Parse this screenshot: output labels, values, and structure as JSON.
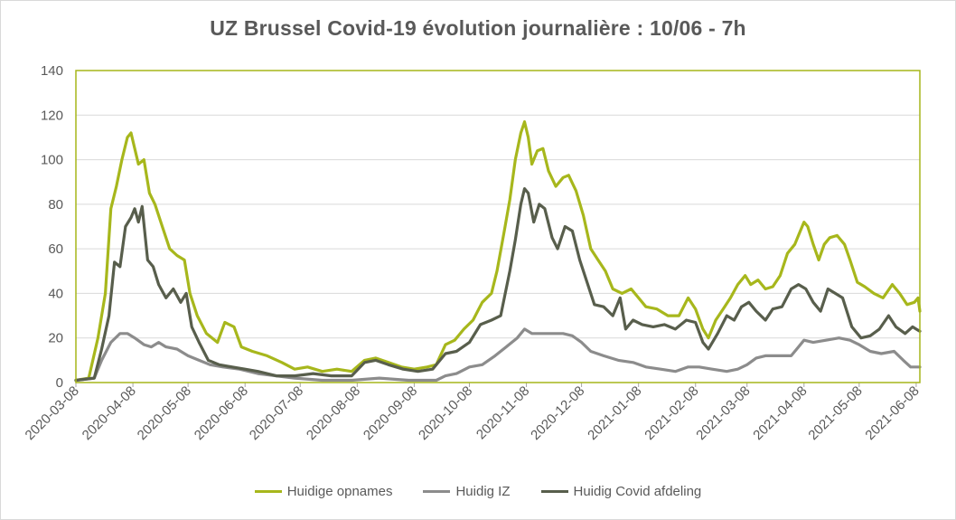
{
  "chart_data": {
    "type": "line",
    "title": "UZ Brussel Covid-19 évolution journalière : 10/06 - 7h",
    "xlabel": "",
    "ylabel": "",
    "ylim": [
      0,
      140
    ],
    "yticks": [
      0,
      20,
      40,
      60,
      80,
      100,
      120,
      140
    ],
    "xlim": [
      "2020-03-08",
      "2021-06-10"
    ],
    "xticks": [
      "2020-03-08",
      "2020-04-08",
      "2020-05-08",
      "2020-06-08",
      "2020-07-08",
      "2020-08-08",
      "2020-09-08",
      "2020-10-08",
      "2020-11-08",
      "2020-12-08",
      "2021-01-08",
      "2021-02-08",
      "2021-03-08",
      "2021-04-08",
      "2021-05-08",
      "2021-06-08"
    ],
    "grid": true,
    "legend_position": "bottom",
    "plot_border_color": "#a6b51a",
    "series": [
      {
        "name": "Huidige opnames",
        "color": "#a7b71c",
        "points": [
          [
            "2020-03-08",
            1
          ],
          [
            "2020-03-15",
            2
          ],
          [
            "2020-03-20",
            20
          ],
          [
            "2020-03-24",
            40
          ],
          [
            "2020-03-27",
            78
          ],
          [
            "2020-03-30",
            88
          ],
          [
            "2020-04-02",
            100
          ],
          [
            "2020-04-05",
            110
          ],
          [
            "2020-04-07",
            112
          ],
          [
            "2020-04-09",
            105
          ],
          [
            "2020-04-11",
            98
          ],
          [
            "2020-04-14",
            100
          ],
          [
            "2020-04-17",
            85
          ],
          [
            "2020-04-20",
            80
          ],
          [
            "2020-04-24",
            70
          ],
          [
            "2020-04-28",
            60
          ],
          [
            "2020-05-02",
            57
          ],
          [
            "2020-05-06",
            55
          ],
          [
            "2020-05-09",
            40
          ],
          [
            "2020-05-13",
            30
          ],
          [
            "2020-05-18",
            22
          ],
          [
            "2020-05-24",
            18
          ],
          [
            "2020-05-28",
            27
          ],
          [
            "2020-06-02",
            25
          ],
          [
            "2020-06-06",
            16
          ],
          [
            "2020-06-12",
            14
          ],
          [
            "2020-06-20",
            12
          ],
          [
            "2020-06-28",
            9
          ],
          [
            "2020-07-05",
            6
          ],
          [
            "2020-07-12",
            7
          ],
          [
            "2020-07-20",
            5
          ],
          [
            "2020-07-28",
            6
          ],
          [
            "2020-08-05",
            5
          ],
          [
            "2020-08-12",
            10
          ],
          [
            "2020-08-18",
            11
          ],
          [
            "2020-08-25",
            9
          ],
          [
            "2020-09-01",
            7
          ],
          [
            "2020-09-08",
            6
          ],
          [
            "2020-09-15",
            7
          ],
          [
            "2020-09-20",
            8
          ],
          [
            "2020-09-25",
            17
          ],
          [
            "2020-09-30",
            19
          ],
          [
            "2020-10-05",
            24
          ],
          [
            "2020-10-10",
            28
          ],
          [
            "2020-10-15",
            36
          ],
          [
            "2020-10-20",
            40
          ],
          [
            "2020-10-23",
            50
          ],
          [
            "2020-10-27",
            68
          ],
          [
            "2020-10-30",
            82
          ],
          [
            "2020-11-02",
            100
          ],
          [
            "2020-11-05",
            112
          ],
          [
            "2020-11-07",
            117
          ],
          [
            "2020-11-09",
            110
          ],
          [
            "2020-11-11",
            98
          ],
          [
            "2020-11-14",
            104
          ],
          [
            "2020-11-17",
            105
          ],
          [
            "2020-11-20",
            95
          ],
          [
            "2020-11-24",
            88
          ],
          [
            "2020-11-28",
            92
          ],
          [
            "2020-12-01",
            93
          ],
          [
            "2020-12-05",
            86
          ],
          [
            "2020-12-09",
            75
          ],
          [
            "2020-12-13",
            60
          ],
          [
            "2020-12-17",
            55
          ],
          [
            "2020-12-21",
            50
          ],
          [
            "2020-12-25",
            42
          ],
          [
            "2020-12-30",
            40
          ],
          [
            "2021-01-04",
            42
          ],
          [
            "2021-01-08",
            38
          ],
          [
            "2021-01-12",
            34
          ],
          [
            "2021-01-18",
            33
          ],
          [
            "2021-01-24",
            30
          ],
          [
            "2021-01-30",
            30
          ],
          [
            "2021-02-04",
            38
          ],
          [
            "2021-02-08",
            33
          ],
          [
            "2021-02-12",
            24
          ],
          [
            "2021-02-15",
            20
          ],
          [
            "2021-02-19",
            28
          ],
          [
            "2021-02-23",
            33
          ],
          [
            "2021-02-27",
            38
          ],
          [
            "2021-03-03",
            44
          ],
          [
            "2021-03-07",
            48
          ],
          [
            "2021-03-10",
            44
          ],
          [
            "2021-03-14",
            46
          ],
          [
            "2021-03-18",
            42
          ],
          [
            "2021-03-22",
            43
          ],
          [
            "2021-03-26",
            48
          ],
          [
            "2021-03-30",
            58
          ],
          [
            "2021-04-03",
            62
          ],
          [
            "2021-04-06",
            68
          ],
          [
            "2021-04-08",
            72
          ],
          [
            "2021-04-10",
            70
          ],
          [
            "2021-04-13",
            62
          ],
          [
            "2021-04-16",
            55
          ],
          [
            "2021-04-19",
            62
          ],
          [
            "2021-04-22",
            65
          ],
          [
            "2021-04-26",
            66
          ],
          [
            "2021-04-30",
            62
          ],
          [
            "2021-05-03",
            55
          ],
          [
            "2021-05-07",
            45
          ],
          [
            "2021-05-11",
            43
          ],
          [
            "2021-05-16",
            40
          ],
          [
            "2021-05-21",
            38
          ],
          [
            "2021-05-26",
            44
          ],
          [
            "2021-05-30",
            40
          ],
          [
            "2021-06-03",
            35
          ],
          [
            "2021-06-07",
            36
          ],
          [
            "2021-06-09",
            38
          ],
          [
            "2021-06-10",
            32
          ]
        ]
      },
      {
        "name": "Huidig IZ",
        "color": "#8c8c8c",
        "points": [
          [
            "2020-03-08",
            1
          ],
          [
            "2020-03-18",
            2
          ],
          [
            "2020-03-22",
            10
          ],
          [
            "2020-03-27",
            18
          ],
          [
            "2020-04-01",
            22
          ],
          [
            "2020-04-05",
            22
          ],
          [
            "2020-04-09",
            20
          ],
          [
            "2020-04-14",
            17
          ],
          [
            "2020-04-18",
            16
          ],
          [
            "2020-04-22",
            18
          ],
          [
            "2020-04-26",
            16
          ],
          [
            "2020-05-02",
            15
          ],
          [
            "2020-05-08",
            12
          ],
          [
            "2020-05-14",
            10
          ],
          [
            "2020-05-20",
            8
          ],
          [
            "2020-05-27",
            7
          ],
          [
            "2020-06-05",
            6
          ],
          [
            "2020-06-15",
            4
          ],
          [
            "2020-06-25",
            3
          ],
          [
            "2020-07-05",
            2
          ],
          [
            "2020-07-20",
            1
          ],
          [
            "2020-08-05",
            1
          ],
          [
            "2020-08-20",
            2
          ],
          [
            "2020-09-05",
            1
          ],
          [
            "2020-09-20",
            1
          ],
          [
            "2020-09-25",
            3
          ],
          [
            "2020-10-01",
            4
          ],
          [
            "2020-10-08",
            7
          ],
          [
            "2020-10-15",
            8
          ],
          [
            "2020-10-22",
            12
          ],
          [
            "2020-10-28",
            16
          ],
          [
            "2020-11-03",
            20
          ],
          [
            "2020-11-07",
            24
          ],
          [
            "2020-11-11",
            22
          ],
          [
            "2020-11-16",
            22
          ],
          [
            "2020-11-22",
            22
          ],
          [
            "2020-11-28",
            22
          ],
          [
            "2020-12-03",
            21
          ],
          [
            "2020-12-08",
            18
          ],
          [
            "2020-12-13",
            14
          ],
          [
            "2020-12-20",
            12
          ],
          [
            "2020-12-28",
            10
          ],
          [
            "2021-01-05",
            9
          ],
          [
            "2021-01-12",
            7
          ],
          [
            "2021-01-20",
            6
          ],
          [
            "2021-01-28",
            5
          ],
          [
            "2021-02-04",
            7
          ],
          [
            "2021-02-10",
            7
          ],
          [
            "2021-02-17",
            6
          ],
          [
            "2021-02-25",
            5
          ],
          [
            "2021-03-03",
            6
          ],
          [
            "2021-03-08",
            8
          ],
          [
            "2021-03-13",
            11
          ],
          [
            "2021-03-18",
            12
          ],
          [
            "2021-03-25",
            12
          ],
          [
            "2021-04-01",
            12
          ],
          [
            "2021-04-05",
            16
          ],
          [
            "2021-04-08",
            19
          ],
          [
            "2021-04-13",
            18
          ],
          [
            "2021-04-20",
            19
          ],
          [
            "2021-04-27",
            20
          ],
          [
            "2021-05-03",
            19
          ],
          [
            "2021-05-08",
            17
          ],
          [
            "2021-05-14",
            14
          ],
          [
            "2021-05-20",
            13
          ],
          [
            "2021-05-27",
            14
          ],
          [
            "2021-06-01",
            10
          ],
          [
            "2021-06-05",
            7
          ],
          [
            "2021-06-10",
            7
          ]
        ]
      },
      {
        "name": "Huidig Covid afdeling",
        "color": "#585e4c",
        "points": [
          [
            "2020-03-08",
            1
          ],
          [
            "2020-03-18",
            2
          ],
          [
            "2020-03-22",
            15
          ],
          [
            "2020-03-26",
            30
          ],
          [
            "2020-03-29",
            54
          ],
          [
            "2020-04-01",
            52
          ],
          [
            "2020-04-04",
            70
          ],
          [
            "2020-04-07",
            74
          ],
          [
            "2020-04-09",
            78
          ],
          [
            "2020-04-11",
            72
          ],
          [
            "2020-04-13",
            79
          ],
          [
            "2020-04-16",
            55
          ],
          [
            "2020-04-19",
            52
          ],
          [
            "2020-04-22",
            44
          ],
          [
            "2020-04-26",
            38
          ],
          [
            "2020-04-30",
            42
          ],
          [
            "2020-05-04",
            36
          ],
          [
            "2020-05-07",
            40
          ],
          [
            "2020-05-10",
            25
          ],
          [
            "2020-05-14",
            18
          ],
          [
            "2020-05-19",
            10
          ],
          [
            "2020-05-25",
            8
          ],
          [
            "2020-06-01",
            7
          ],
          [
            "2020-06-08",
            6
          ],
          [
            "2020-06-15",
            5
          ],
          [
            "2020-06-25",
            3
          ],
          [
            "2020-07-05",
            3
          ],
          [
            "2020-07-15",
            4
          ],
          [
            "2020-07-25",
            3
          ],
          [
            "2020-08-05",
            3
          ],
          [
            "2020-08-12",
            9
          ],
          [
            "2020-08-18",
            10
          ],
          [
            "2020-08-25",
            8
          ],
          [
            "2020-09-02",
            6
          ],
          [
            "2020-09-10",
            5
          ],
          [
            "2020-09-18",
            6
          ],
          [
            "2020-09-25",
            13
          ],
          [
            "2020-10-01",
            14
          ],
          [
            "2020-10-08",
            18
          ],
          [
            "2020-10-14",
            26
          ],
          [
            "2020-10-20",
            28
          ],
          [
            "2020-10-25",
            30
          ],
          [
            "2020-10-30",
            50
          ],
          [
            "2020-11-02",
            64
          ],
          [
            "2020-11-05",
            80
          ],
          [
            "2020-11-07",
            87
          ],
          [
            "2020-11-09",
            85
          ],
          [
            "2020-11-12",
            72
          ],
          [
            "2020-11-15",
            80
          ],
          [
            "2020-11-18",
            78
          ],
          [
            "2020-11-22",
            65
          ],
          [
            "2020-11-25",
            60
          ],
          [
            "2020-11-29",
            70
          ],
          [
            "2020-12-03",
            68
          ],
          [
            "2020-12-07",
            55
          ],
          [
            "2020-12-11",
            45
          ],
          [
            "2020-12-15",
            35
          ],
          [
            "2020-12-20",
            34
          ],
          [
            "2020-12-25",
            30
          ],
          [
            "2020-12-29",
            38
          ],
          [
            "2021-01-01",
            24
          ],
          [
            "2021-01-05",
            28
          ],
          [
            "2021-01-10",
            26
          ],
          [
            "2021-01-16",
            25
          ],
          [
            "2021-01-22",
            26
          ],
          [
            "2021-01-28",
            24
          ],
          [
            "2021-02-03",
            28
          ],
          [
            "2021-02-08",
            27
          ],
          [
            "2021-02-12",
            18
          ],
          [
            "2021-02-15",
            15
          ],
          [
            "2021-02-20",
            22
          ],
          [
            "2021-02-25",
            30
          ],
          [
            "2021-03-01",
            28
          ],
          [
            "2021-03-05",
            34
          ],
          [
            "2021-03-09",
            36
          ],
          [
            "2021-03-13",
            32
          ],
          [
            "2021-03-18",
            28
          ],
          [
            "2021-03-22",
            33
          ],
          [
            "2021-03-27",
            34
          ],
          [
            "2021-04-01",
            42
          ],
          [
            "2021-04-05",
            44
          ],
          [
            "2021-04-09",
            42
          ],
          [
            "2021-04-13",
            36
          ],
          [
            "2021-04-17",
            32
          ],
          [
            "2021-04-21",
            42
          ],
          [
            "2021-04-25",
            40
          ],
          [
            "2021-04-29",
            38
          ],
          [
            "2021-05-04",
            25
          ],
          [
            "2021-05-09",
            20
          ],
          [
            "2021-05-14",
            21
          ],
          [
            "2021-05-19",
            24
          ],
          [
            "2021-05-24",
            30
          ],
          [
            "2021-05-28",
            25
          ],
          [
            "2021-06-02",
            22
          ],
          [
            "2021-06-06",
            25
          ],
          [
            "2021-06-08",
            24
          ],
          [
            "2021-06-10",
            23
          ]
        ]
      }
    ]
  }
}
